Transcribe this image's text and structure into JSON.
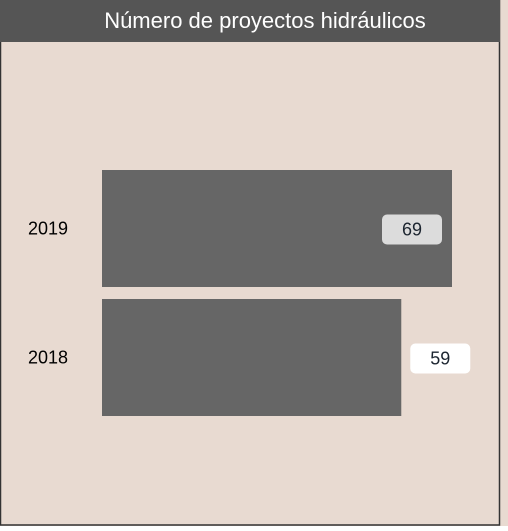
{
  "chart_data": {
    "type": "bar",
    "orientation": "horizontal",
    "title": "Número de proyectos hidráulicos",
    "categories": [
      "2019",
      "2018"
    ],
    "values": [
      69,
      59
    ],
    "color": "#666666"
  }
}
